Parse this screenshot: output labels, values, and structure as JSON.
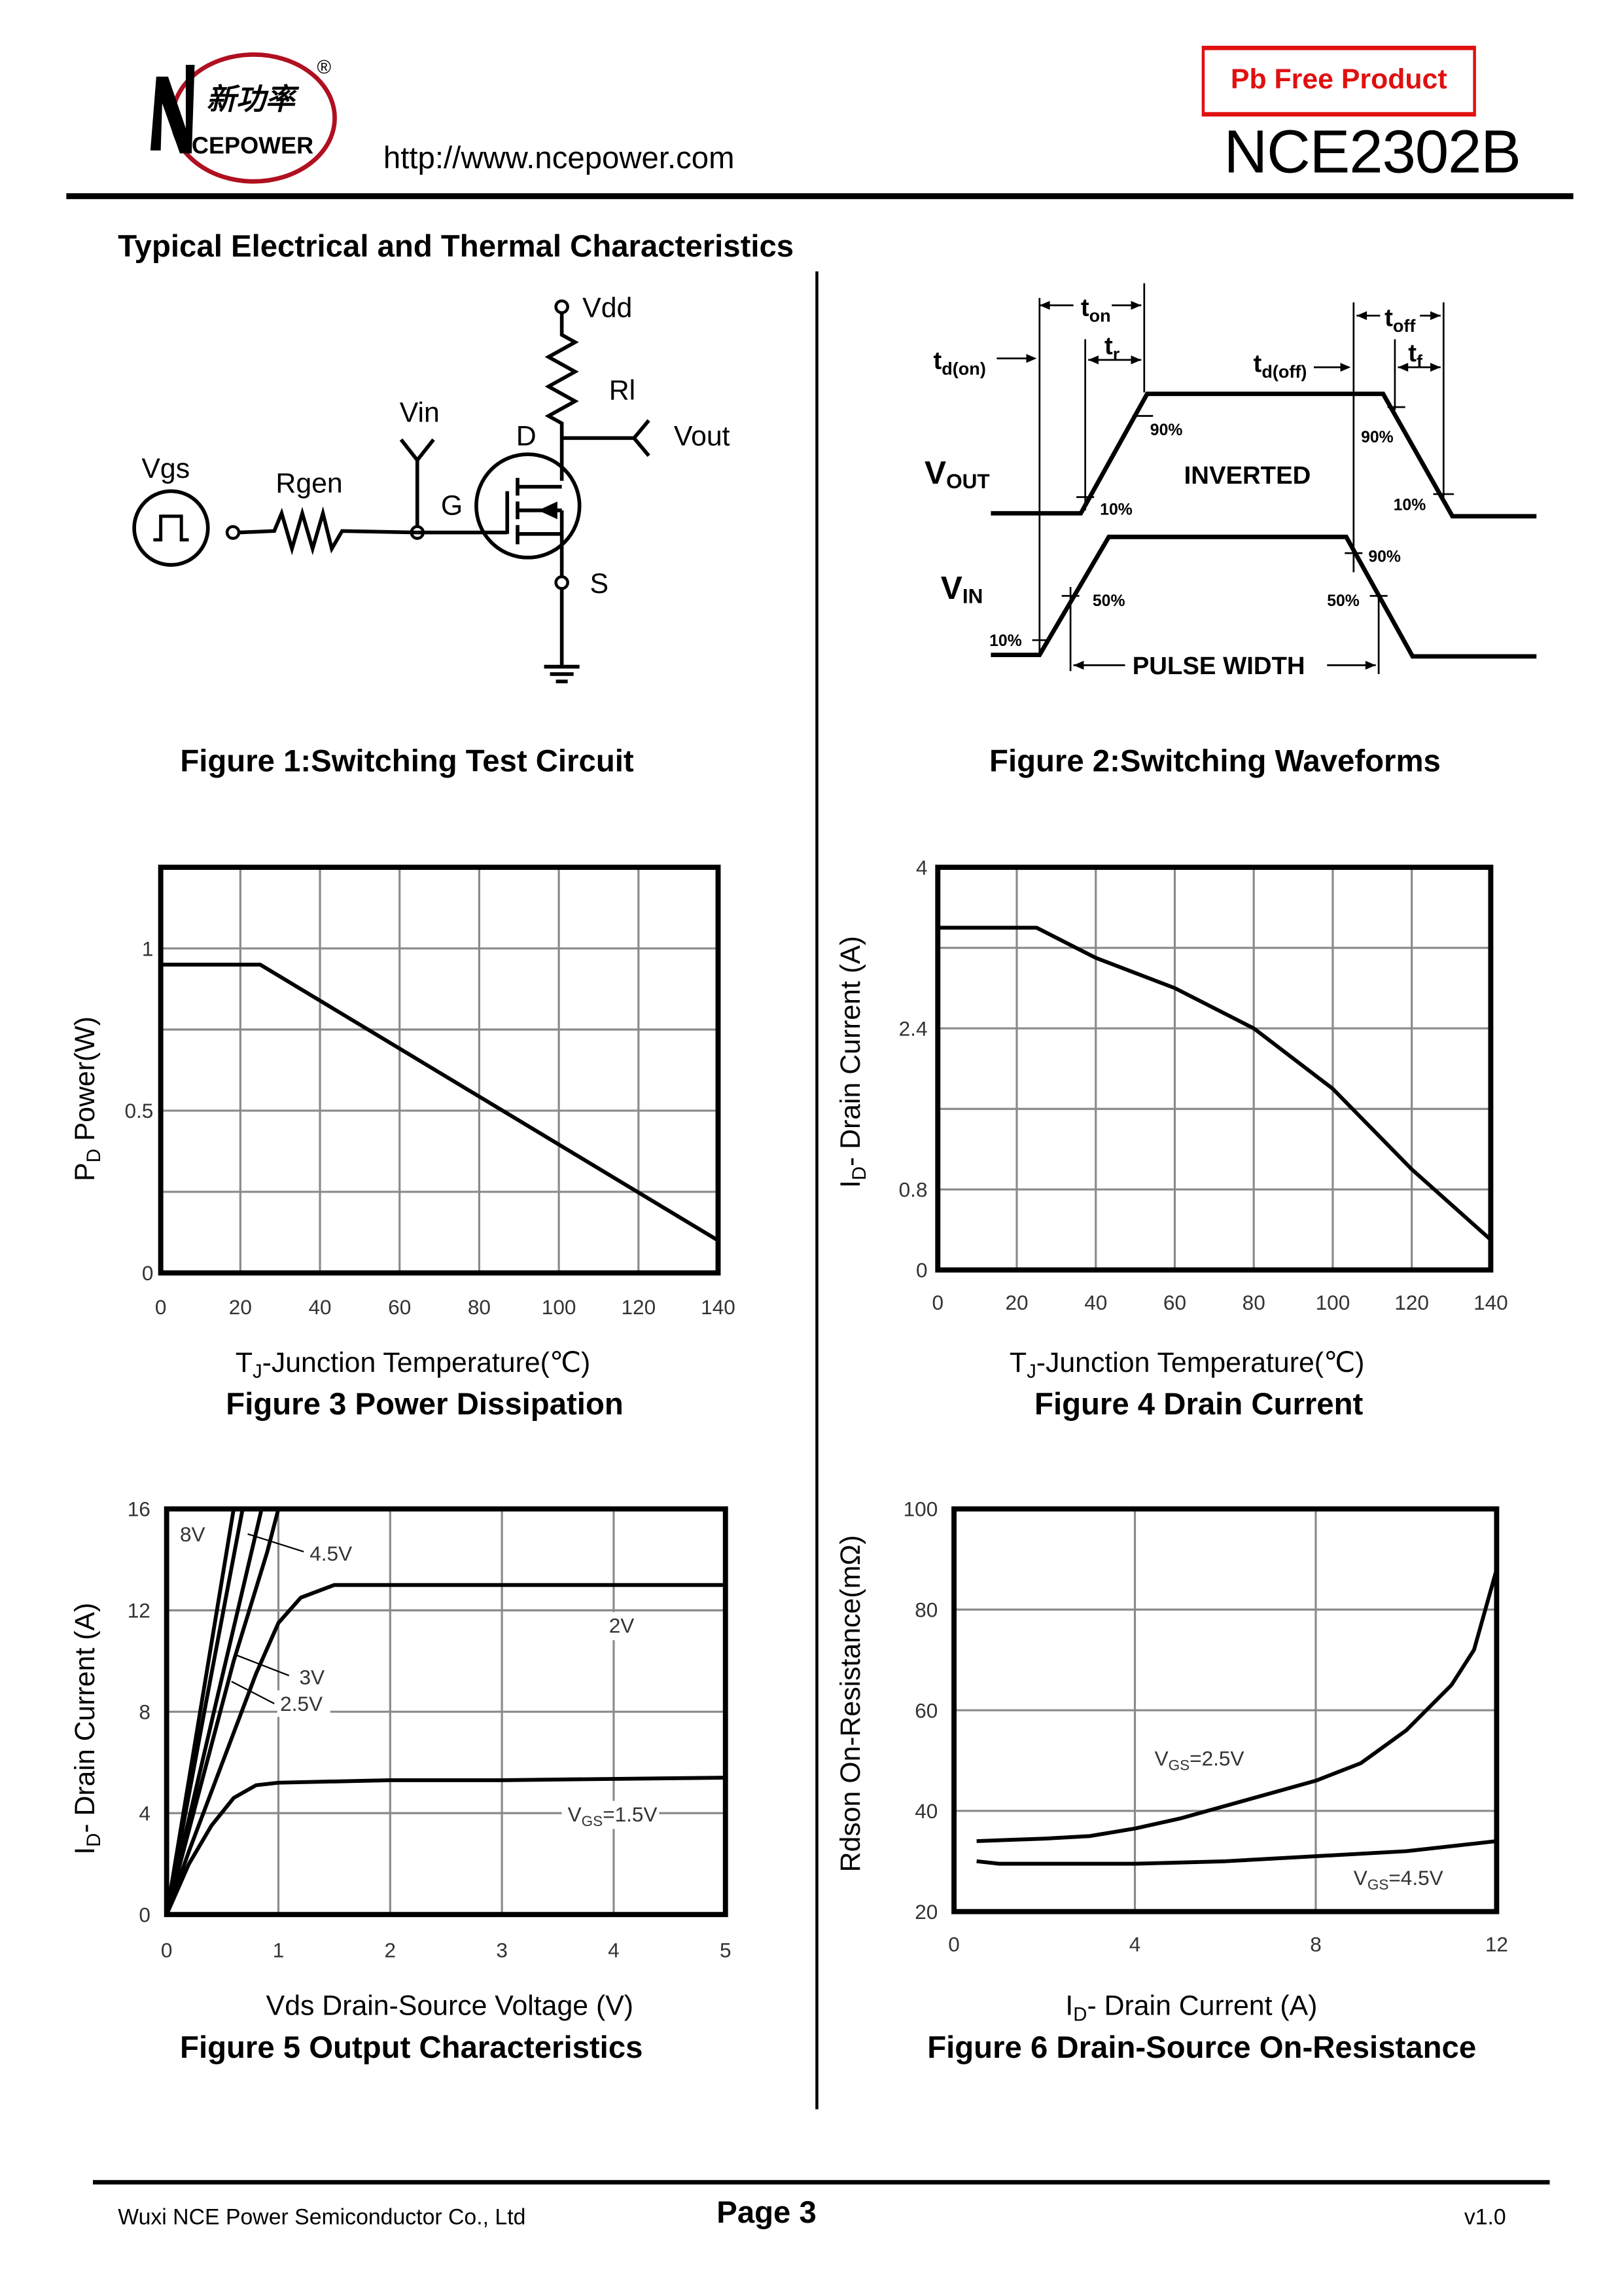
{
  "header": {
    "logo": {
      "brand_cn": "新功率",
      "brand_en": "CEPOWER",
      "registered": "®"
    },
    "url": "http://www.ncepower.com",
    "badge": "Pb Free Product",
    "part_number": "NCE2302B",
    "accent_color": "#e01010"
  },
  "section_title": "Typical Electrical and Thermal Characteristics",
  "figure1": {
    "caption": "Figure 1:Switching Test Circuit",
    "labels": {
      "vdd": "Vdd",
      "rl": "Rl",
      "vin": "Vin",
      "vout": "Vout",
      "d": "D",
      "g": "G",
      "s": "S",
      "vgs": "Vgs",
      "rgen": "Rgen"
    }
  },
  "figure2": {
    "caption": "Figure 2:Switching Waveforms",
    "labels": {
      "ton": {
        "main": "t",
        "sub": "on"
      },
      "tr": {
        "main": "t",
        "sub": "r"
      },
      "tdon": {
        "main": "t",
        "sub": "d(on)"
      },
      "tdoff": {
        "main": "t",
        "sub": "d(off)"
      },
      "toff": {
        "main": "t",
        "sub": "off"
      },
      "tf": {
        "main": "t",
        "sub": "f"
      },
      "vout": {
        "main": "V",
        "sub": "OUT"
      },
      "vin": {
        "main": "V",
        "sub": "IN"
      },
      "inverted": "INVERTED",
      "pulse_width": "PULSE WIDTH",
      "p90": "90%",
      "p10": "10%",
      "p50": "50%"
    }
  },
  "chart_data": [
    {
      "type": "line",
      "caption": "Figure 3 Power Dissipation",
      "xlabel": {
        "text": "T",
        "sub": "J",
        "rest": "-Junction Temperature(℃)"
      },
      "ylabel": {
        "text": "P",
        "sub": "D",
        "rest": "  Power(W)"
      },
      "xlim": [
        0,
        140
      ],
      "ylim": [
        0,
        1.25
      ],
      "x_ticks": [
        0,
        20,
        40,
        60,
        80,
        100,
        120,
        140
      ],
      "y_ticks": [
        0,
        0.5,
        1
      ],
      "x_grid": [
        20,
        40,
        60,
        80,
        100,
        120
      ],
      "y_grid": [
        0.25,
        0.5,
        0.75,
        1.0
      ],
      "grid": true,
      "series": [
        {
          "x": [
            0,
            25,
            140
          ],
          "y": [
            0.95,
            0.95,
            0.1
          ]
        }
      ]
    },
    {
      "type": "line",
      "caption": "Figure 4 Drain Current",
      "xlabel": {
        "text": "T",
        "sub": "J",
        "rest": "-Junction Temperature(℃)"
      },
      "ylabel": {
        "text": "I",
        "sub": "D",
        "rest": "- Drain Current (A)"
      },
      "xlim": [
        0,
        140
      ],
      "ylim": [
        0,
        4
      ],
      "x_ticks": [
        0,
        20,
        40,
        60,
        80,
        100,
        120,
        140
      ],
      "y_ticks": [
        0,
        0.8,
        2.4,
        4
      ],
      "x_grid": [
        20,
        40,
        60,
        80,
        100,
        120
      ],
      "y_grid": [
        0.8,
        1.6,
        2.4,
        3.2
      ],
      "grid": true,
      "series": [
        {
          "x": [
            0,
            25,
            40,
            60,
            80,
            100,
            120,
            140
          ],
          "y": [
            3.4,
            3.4,
            3.1,
            2.8,
            2.4,
            1.8,
            1.0,
            0.3
          ]
        }
      ]
    },
    {
      "type": "line",
      "caption": "Figure 5 Output Characteristics",
      "xlabel": {
        "text": "Vds Drain-Source Voltage (V)",
        "sub": "",
        "rest": ""
      },
      "ylabel": {
        "text": "I",
        "sub": "D",
        "rest": "- Drain Current (A)"
      },
      "xlim": [
        0,
        5
      ],
      "ylim": [
        0,
        16
      ],
      "x_ticks": [
        0,
        1,
        2,
        3,
        4,
        5
      ],
      "y_ticks": [
        0,
        4,
        8,
        12,
        16
      ],
      "x_grid": [
        1,
        2,
        3,
        4
      ],
      "y_grid": [
        4,
        8,
        12
      ],
      "grid": true,
      "series": [
        {
          "name": "8V",
          "x": [
            0,
            0.3,
            0.6
          ],
          "y": [
            0,
            8,
            16
          ]
        },
        {
          "name": "4.5V",
          "x": [
            0,
            0.35,
            0.68
          ],
          "y": [
            0,
            8.3,
            16
          ]
        },
        {
          "name": "3V",
          "x": [
            0,
            0.45,
            0.85
          ],
          "y": [
            0,
            8.5,
            16
          ]
        },
        {
          "name": "2.5V",
          "x": [
            0,
            0.3,
            0.6,
            0.9,
            1.0
          ],
          "y": [
            0,
            5,
            10,
            14.3,
            16
          ]
        },
        {
          "name": "2V",
          "x": [
            0,
            0.2,
            0.5,
            0.8,
            1.0,
            1.2,
            1.5,
            5
          ],
          "y": [
            0,
            2.5,
            6,
            9.5,
            11.5,
            12.5,
            13,
            13
          ]
        },
        {
          "name": "VGS=1.5V",
          "x": [
            0,
            0.2,
            0.4,
            0.6,
            0.8,
            1,
            2,
            3,
            5
          ],
          "y": [
            0,
            2,
            3.5,
            4.6,
            5.1,
            5.2,
            5.3,
            5.3,
            5.4
          ]
        }
      ]
    },
    {
      "type": "line",
      "caption": "Figure 6 Drain-Source On-Resistance",
      "xlabel": {
        "text": "I",
        "sub": "D",
        "rest": "- Drain Current (A)"
      },
      "ylabel": {
        "text": "Rdson On-Resistance(mΩ)",
        "sub": "",
        "rest": ""
      },
      "xlim": [
        0,
        12
      ],
      "ylim": [
        20,
        100
      ],
      "x_ticks": [
        0,
        4,
        8,
        12
      ],
      "y_ticks": [
        20,
        40,
        60,
        80,
        100
      ],
      "x_grid": [
        4,
        8
      ],
      "y_grid": [
        40,
        60,
        80
      ],
      "grid": true,
      "series": [
        {
          "name": "VGS=2.5V",
          "x": [
            0.5,
            2,
            3,
            4,
            5,
            6,
            7,
            8,
            9,
            10,
            11,
            11.5,
            12
          ],
          "y": [
            34,
            34.5,
            35,
            36.5,
            38.5,
            41,
            43.5,
            46,
            49.5,
            56,
            65,
            72,
            88
          ]
        },
        {
          "name": "VGS=4.5V",
          "x": [
            0.5,
            1,
            4,
            6,
            8,
            10,
            12
          ],
          "y": [
            30,
            29.5,
            29.5,
            30,
            31,
            32,
            34
          ]
        }
      ]
    }
  ],
  "footer": {
    "company": "Wuxi NCE Power Semiconductor Co., Ltd",
    "page": "Page  3",
    "version": "v1.0"
  }
}
